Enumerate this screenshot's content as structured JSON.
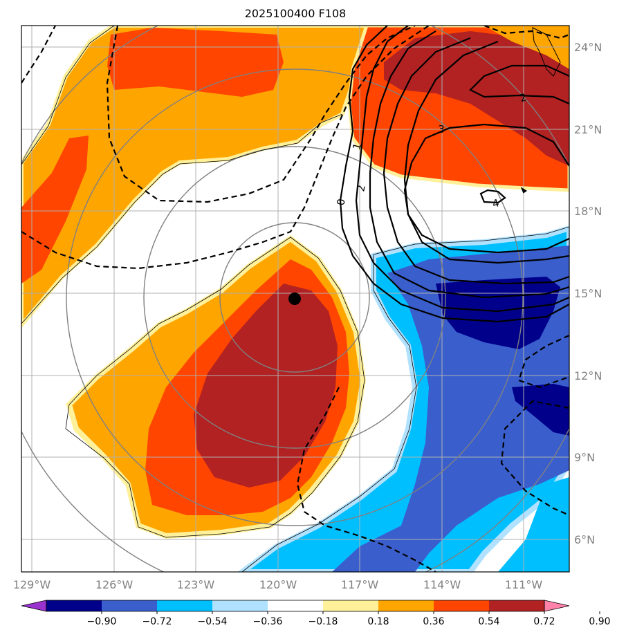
{
  "title": "2025100400 F108",
  "lat_labels": [
    "24°N",
    "21°N",
    "18°N",
    "15°N",
    "12°N",
    "9°N",
    "6°N"
  ],
  "lon_labels": [
    "129°W",
    "126°W",
    "123°W",
    "120°W",
    "117°W",
    "114°W",
    "111°W"
  ],
  "colorbar": {
    "ticks": [
      "−0.90",
      "−0.72",
      "−0.54",
      "−0.36",
      "−0.18",
      "0.18",
      "0.36",
      "0.54",
      "0.72",
      "0.90"
    ],
    "colors": [
      "#9a32cd",
      "#00008b",
      "#3a5fcd",
      "#00bfff",
      "#b0e2ff",
      "#ffffff",
      "#fff09a",
      "#ffa500",
      "#ff4500",
      "#b22222",
      "#ff82ab"
    ]
  },
  "contour_labels": [
    "0",
    "1",
    "2",
    "2",
    "3",
    "4"
  ],
  "storm_center": {
    "lon": "120°W",
    "lat": "15°N"
  }
}
